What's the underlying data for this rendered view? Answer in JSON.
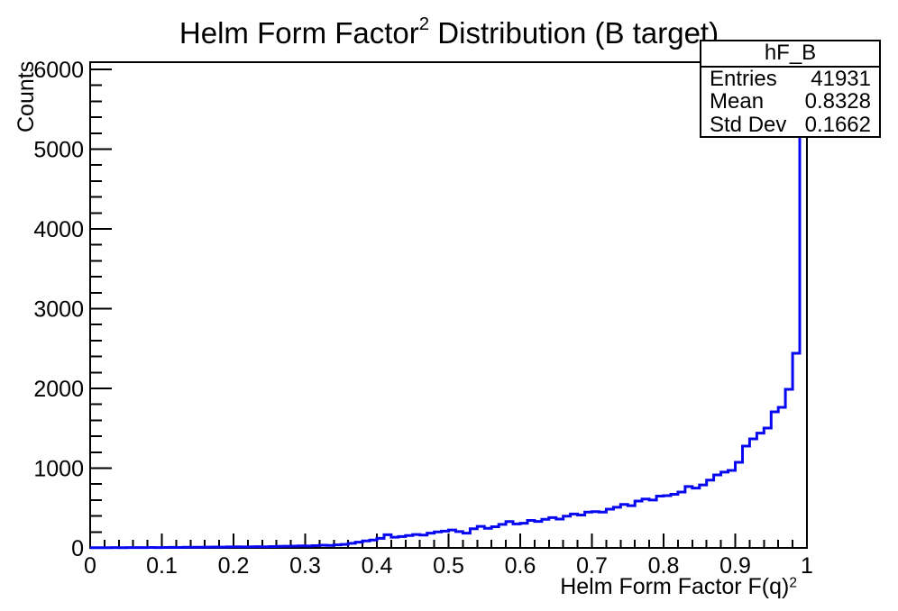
{
  "title": {
    "prefix": "Helm Form Factor",
    "sup": "2",
    "suffix": " Distribution (B target)"
  },
  "stats_box": {
    "title": "hF_B",
    "rows": [
      {
        "label": "Entries",
        "value": "41931"
      },
      {
        "label": "Mean",
        "value": "0.8328"
      },
      {
        "label": "Std Dev",
        "value": "0.1662"
      }
    ]
  },
  "axes": {
    "y_title": "Counts",
    "x_title_prefix": "Helm Form Factor F(q)",
    "x_title_sup": "2"
  },
  "colors": {
    "line": "#0808f0",
    "frame": "#000000",
    "background": "#ffffff",
    "text": "#000000"
  },
  "chart_data": {
    "type": "bar",
    "subtype": "step-histogram",
    "title": "Helm Form Factor^2 Distribution (B target)",
    "xlabel": "Helm Form Factor F(q)^2",
    "ylabel": "Counts",
    "histogram_name": "hF_B",
    "entries": 41931,
    "mean": 0.8328,
    "std_dev": 0.1662,
    "xlim": [
      0,
      1
    ],
    "ylim": [
      0,
      6090
    ],
    "n_bins": 100,
    "grid": false,
    "legend_position": "none",
    "x_tick_values": [
      0,
      0.1,
      0.2,
      0.3,
      0.4,
      0.5,
      0.6,
      0.7,
      0.8,
      0.9,
      1
    ],
    "x_tick_labels": [
      "0",
      "0.1",
      "0.2",
      "0.3",
      "0.4",
      "0.5",
      "0.6",
      "0.7",
      "0.8",
      "0.9",
      "1"
    ],
    "y_tick_values": [
      0,
      1000,
      2000,
      3000,
      4000,
      5000,
      6000
    ],
    "y_tick_labels": [
      "0",
      "1000",
      "2000",
      "3000",
      "4000",
      "5000",
      "6000"
    ],
    "x_minor_step": 0.02,
    "y_minor_step": 200,
    "values": [
      2,
      3,
      2,
      4,
      3,
      4,
      5,
      4,
      6,
      5,
      6,
      7,
      6,
      8,
      9,
      8,
      10,
      11,
      10,
      12,
      13,
      12,
      14,
      16,
      15,
      17,
      19,
      21,
      23,
      26,
      24,
      28,
      34,
      30,
      38,
      44,
      58,
      72,
      88,
      98,
      120,
      165,
      135,
      142,
      155,
      168,
      162,
      185,
      200,
      210,
      225,
      205,
      185,
      240,
      270,
      245,
      265,
      295,
      330,
      300,
      310,
      345,
      332,
      358,
      380,
      362,
      398,
      425,
      412,
      448,
      455,
      448,
      486,
      510,
      545,
      530,
      588,
      612,
      600,
      650,
      655,
      672,
      700,
      770,
      750,
      790,
      850,
      915,
      950,
      972,
      1073,
      1277,
      1367,
      1440,
      1503,
      1706,
      1763,
      1989,
      2441,
      5807
    ]
  }
}
